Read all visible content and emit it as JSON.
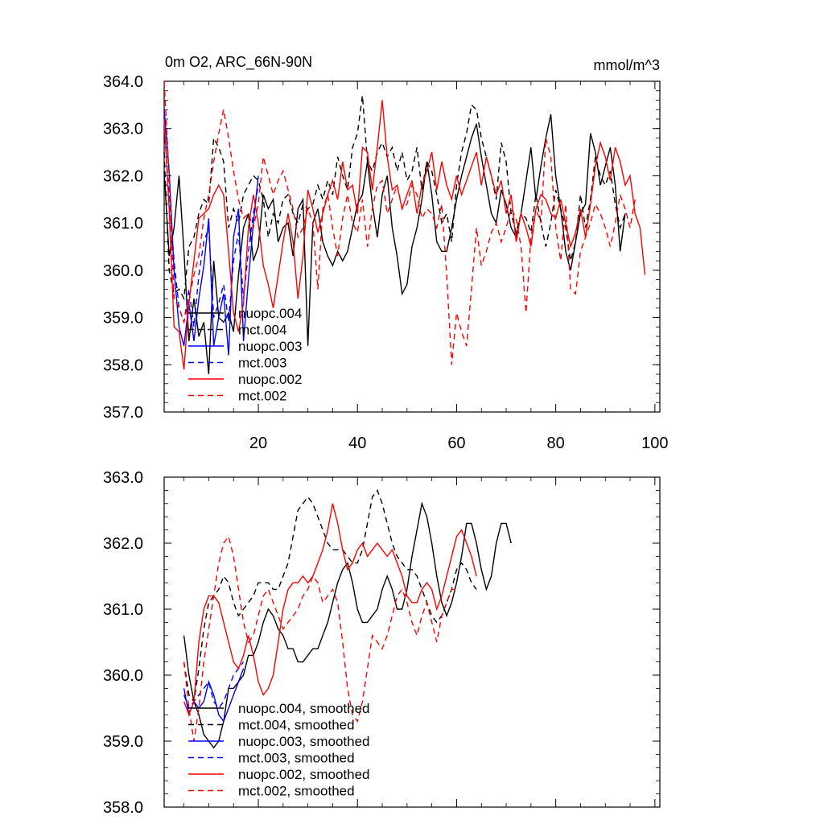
{
  "chart_data": [
    {
      "type": "line",
      "title_left": "0m O2, ARC_66N-90N",
      "title_right": "mmol/m^3",
      "xlabel": "",
      "ylabel": "",
      "xlim": [
        1,
        101
      ],
      "ylim": [
        357.0,
        364.0
      ],
      "x_tick_labels": [
        "20",
        "40",
        "60",
        "80",
        "100"
      ],
      "y_tick_labels": [
        "357.0",
        "358.0",
        "359.0",
        "360.0",
        "361.0",
        "362.0",
        "363.0",
        "364.0"
      ],
      "legend_position": "bottom-left",
      "series": [
        {
          "name": "nuopc.004",
          "color": "#000000",
          "dash": "solid",
          "x_start": 1,
          "values": [
            362.1,
            360.3,
            360.9,
            362.0,
            360.4,
            358.5,
            359.4,
            358.6,
            358.9,
            357.8,
            360.2,
            359.0,
            358.9,
            359.1,
            358.7,
            359.9,
            360.9,
            361.2,
            360.2,
            360.5,
            361.6,
            361.3,
            361.5,
            360.6,
            360.9,
            361.0,
            360.3,
            361.3,
            361.5,
            358.4,
            361.0,
            361.3,
            360.6,
            360.3,
            360.1,
            360.4,
            360.2,
            360.4,
            360.9,
            361.4,
            361.6,
            362.3,
            361.4,
            360.7,
            361.6,
            362.0,
            360.9,
            360.3,
            359.5,
            359.7,
            360.5,
            360.9,
            361.5,
            362.3,
            361.6,
            360.6,
            360.4,
            360.4,
            360.9,
            361.5,
            362.0,
            362.4,
            362.8,
            363.1,
            362.4,
            361.8,
            361.2,
            361.0,
            361.7,
            361.4,
            360.9,
            360.7,
            361.2,
            361.9,
            362.6,
            361.5,
            362.2,
            362.8,
            363.3,
            362.0,
            361.3,
            360.4,
            360.0,
            360.6,
            361.2,
            361.4,
            362.9,
            362.5,
            361.8,
            362.2,
            362.6,
            361.8,
            360.4,
            361.2
          ]
        },
        {
          "name": "mct.004",
          "color": "#000000",
          "dash": "dashed",
          "x_start": 1,
          "values": [
            362.5,
            360.0,
            359.5,
            359.6,
            359.4,
            360.5,
            360.7,
            361.2,
            361.5,
            361.4,
            362.8,
            362.6,
            362.3,
            360.9,
            361.3,
            361.0,
            361.6,
            361.8,
            362.0,
            361.9,
            361.5,
            360.7,
            361.2,
            361.0,
            361.5,
            361.6,
            361.2,
            361.0,
            361.4,
            361.3,
            361.4,
            361.8,
            361.5,
            361.9,
            361.6,
            362.4,
            362.0,
            361.7,
            362.6,
            362.9,
            363.7,
            362.3,
            362.1,
            362.5,
            362.7,
            362.4,
            362.6,
            362.1,
            362.5,
            361.9,
            362.1,
            362.6,
            361.7,
            362.3,
            362.1,
            361.6,
            361.0,
            361.2,
            360.6,
            361.8,
            362.5,
            362.9,
            363.5,
            363.4,
            362.8,
            362.4,
            362.0,
            361.5,
            362.7,
            362.3,
            361.2,
            360.8,
            361.2,
            361.1,
            360.8,
            361.6,
            361.0,
            360.5,
            361.0,
            361.7,
            361.3,
            360.9,
            360.2,
            360.6,
            361.6,
            360.9,
            361.5,
            362.4,
            362.0,
            361.8,
            362.1,
            361.4,
            360.9,
            361.2
          ]
        },
        {
          "name": "nuopc.003",
          "color": "#0000ff",
          "dash": "solid",
          "x_start": 1,
          "values": [
            363.4,
            362.1,
            360.0,
            358.8,
            358.4,
            359.3,
            358.5,
            359.4,
            360.1,
            361.1,
            358.4,
            359.0,
            359.5,
            358.2,
            360.7,
            361.3,
            358.5,
            359.8,
            361.0,
            362.0
          ]
        },
        {
          "name": "mct.003",
          "color": "#0000ff",
          "dash": "dashed",
          "x_start": 1,
          "values": [
            363.0,
            361.6,
            360.2,
            359.2,
            358.9,
            359.6,
            358.8,
            359.9,
            360.6,
            360.9,
            359.0,
            359.3,
            359.7,
            358.9,
            360.2,
            360.8,
            359.4,
            360.4,
            361.2,
            361.8
          ]
        },
        {
          "name": "nuopc.002",
          "color": "#ff0000",
          "dash": "solid",
          "x_start": 1,
          "values": [
            363.2,
            361.3,
            358.8,
            358.7,
            357.9,
            359.3,
            360.2,
            361.1,
            361.2,
            361.3,
            361.6,
            361.8,
            361.6,
            360.4,
            359.1,
            358.7,
            359.3,
            360.9,
            361.6,
            361.0,
            360.1,
            359.7,
            359.2,
            359.9,
            360.6,
            361.2,
            360.6,
            359.4,
            360.3,
            361.7,
            361.3,
            360.8,
            361.2,
            361.6,
            361.9,
            361.5,
            362.3,
            361.7,
            361.8,
            361.2,
            362.6,
            362.5,
            361.7,
            362.6,
            363.6,
            362.4,
            361.7,
            361.8,
            361.3,
            361.6,
            361.9,
            361.2,
            361.8,
            362.1,
            362.5,
            361.7,
            362.3,
            361.8,
            361.5,
            362.0,
            361.6,
            361.9,
            362.2,
            362.5,
            361.8,
            362.4,
            362.0,
            361.6,
            361.9,
            361.2,
            361.6,
            360.6,
            361.2,
            360.9,
            360.5,
            361.3,
            361.6,
            361.5,
            361.2,
            361.1,
            361.5,
            361.0,
            360.5,
            360.8,
            361.3,
            360.7,
            361.4,
            362.2,
            362.7,
            362.4,
            361.9,
            362.6,
            362.3,
            361.8,
            362.0,
            361.2,
            360.9,
            359.9
          ]
        },
        {
          "name": "mct.002",
          "color": "#ff0000",
          "dash": "dashed",
          "x_start": 1,
          "values": [
            364.0,
            362.0,
            359.4,
            359.2,
            358.9,
            359.4,
            359.9,
            360.3,
            361.1,
            361.6,
            362.3,
            362.9,
            363.4,
            362.8,
            362.1,
            361.5,
            361.1,
            361.2,
            360.9,
            361.4,
            362.4,
            362.0,
            361.6,
            361.9,
            362.1,
            361.7,
            361.3,
            360.7,
            360.9,
            361.3,
            361.0,
            359.6,
            361.3,
            361.6,
            360.9,
            360.3,
            361.1,
            361.6,
            361.0,
            360.8,
            361.5,
            360.5,
            361.3,
            361.8,
            361.9,
            361.2,
            361.5,
            361.8,
            361.3,
            361.4,
            361.8,
            361.6,
            361.1,
            361.3,
            361.2,
            360.9,
            361.4,
            359.9,
            358.0,
            359.1,
            358.7,
            358.4,
            359.6,
            360.9,
            360.1,
            360.4,
            360.8,
            361.0,
            360.6,
            360.9,
            361.3,
            361.1,
            360.5,
            359.1,
            360.7,
            361.3,
            361.0,
            362.8,
            362.4,
            360.9,
            360.2,
            361.4,
            359.6,
            359.5,
            360.4,
            360.7,
            361.0,
            361.4,
            361.2,
            360.9,
            360.5,
            361.0,
            361.6,
            361.3,
            360.9,
            361.5
          ]
        }
      ]
    },
    {
      "type": "line",
      "title_left": "",
      "title_right": "",
      "xlabel": "",
      "ylabel": "",
      "xlim": [
        1,
        101
      ],
      "ylim": [
        358.0,
        363.0
      ],
      "x_tick_labels": [],
      "y_tick_labels": [
        "358.0",
        "359.0",
        "360.0",
        "361.0",
        "362.0",
        "363.0"
      ],
      "legend_position": "bottom-left",
      "series": [
        {
          "name": "nuopc.004, smoothed",
          "color": "#000000",
          "dash": "solid",
          "x_start": 5,
          "values": [
            360.6,
            360.0,
            359.6,
            359.4,
            359.1,
            359.0,
            358.9,
            359.0,
            359.3,
            359.8,
            359.8,
            359.9,
            360.0,
            360.3,
            360.3,
            360.5,
            360.8,
            361.0,
            360.9,
            360.7,
            360.6,
            360.4,
            360.4,
            360.2,
            360.2,
            360.3,
            360.4,
            360.4,
            360.6,
            360.8,
            361.1,
            361.4,
            361.6,
            361.7,
            361.4,
            361.0,
            360.8,
            360.8,
            360.9,
            361.0,
            361.3,
            361.5,
            361.3,
            361.0,
            361.0,
            361.3,
            361.8,
            362.2,
            362.6,
            362.4,
            362.0,
            361.5,
            361.1,
            360.9,
            361.1,
            361.4,
            361.8,
            362.3,
            362.3,
            362.0,
            361.6,
            361.3,
            361.5,
            362.0,
            362.3,
            362.3,
            362.0
          ]
        },
        {
          "name": "mct.004, smoothed",
          "color": "#000000",
          "dash": "dashed",
          "x_start": 5,
          "values": [
            360.2,
            359.7,
            359.6,
            360.1,
            360.7,
            361.1,
            361.2,
            361.3,
            361.5,
            361.4,
            361.1,
            360.9,
            361.0,
            361.1,
            361.2,
            361.4,
            361.4,
            361.4,
            361.3,
            361.3,
            361.5,
            361.7,
            362.1,
            362.5,
            362.6,
            362.7,
            362.6,
            362.4,
            362.2,
            362.0,
            361.9,
            361.9,
            361.9,
            361.8,
            361.7,
            361.7,
            361.9,
            362.3,
            362.7,
            362.8,
            362.6,
            362.3,
            362.0,
            361.8,
            361.7,
            361.6,
            361.6,
            361.5,
            361.3,
            361.1,
            360.9,
            360.8,
            360.9,
            361.1,
            361.3,
            361.6,
            361.7,
            361.6,
            361.4,
            361.3
          ]
        },
        {
          "name": "nuopc.003, smoothed",
          "color": "#0000ff",
          "dash": "solid",
          "x_start": 5,
          "values": [
            359.8,
            359.4,
            359.6,
            359.5,
            359.6,
            359.9,
            359.7,
            359.4,
            359.3,
            359.5,
            359.7,
            359.9,
            360.1
          ]
        },
        {
          "name": "mct.003, smoothed",
          "color": "#0000ff",
          "dash": "dashed",
          "x_start": 5,
          "values": [
            359.7,
            359.5,
            359.6,
            359.7,
            359.8,
            359.9,
            359.6,
            359.5,
            359.6,
            359.8,
            360.0,
            360.1,
            360.2
          ]
        },
        {
          "name": "nuopc.002, smoothed",
          "color": "#ff0000",
          "dash": "solid",
          "x_start": 5,
          "values": [
            359.6,
            359.4,
            359.6,
            360.5,
            361.0,
            361.2,
            361.2,
            361.1,
            360.8,
            360.5,
            360.2,
            360.1,
            360.3,
            360.6,
            360.3,
            359.9,
            359.7,
            359.8,
            360.0,
            360.5,
            361.0,
            361.3,
            361.4,
            361.4,
            361.5,
            361.4,
            361.5,
            361.7,
            361.9,
            362.2,
            362.6,
            362.3,
            361.9,
            361.6,
            361.7,
            361.9,
            362.0,
            361.8,
            361.9,
            362.0,
            361.9,
            361.8,
            361.9,
            361.7,
            361.5,
            361.2,
            361.1,
            361.1,
            361.3,
            361.4,
            361.3,
            361.0,
            361.2,
            361.5,
            361.8,
            362.1,
            362.2,
            362.0,
            361.8,
            361.5
          ]
        },
        {
          "name": "mct.002, smoothed",
          "color": "#ff0000",
          "dash": "dashed",
          "x_start": 5,
          "values": [
            360.2,
            359.5,
            359.0,
            359.5,
            360.2,
            360.7,
            361.2,
            361.7,
            362.0,
            362.1,
            361.8,
            361.3,
            360.8,
            360.5,
            360.6,
            360.9,
            361.2,
            361.3,
            361.1,
            360.9,
            360.7,
            360.8,
            360.9,
            361.0,
            361.2,
            361.3,
            361.5,
            361.4,
            361.1,
            361.2,
            361.3,
            361.1,
            360.5,
            359.8,
            359.4,
            359.3,
            359.6,
            360.1,
            360.6,
            360.5,
            360.4,
            360.6,
            360.9,
            361.2,
            361.3,
            361.1,
            360.8,
            360.6,
            360.9,
            361.1,
            360.8,
            360.5,
            360.9,
            361.1,
            361.3,
            361.3
          ]
        }
      ]
    }
  ]
}
